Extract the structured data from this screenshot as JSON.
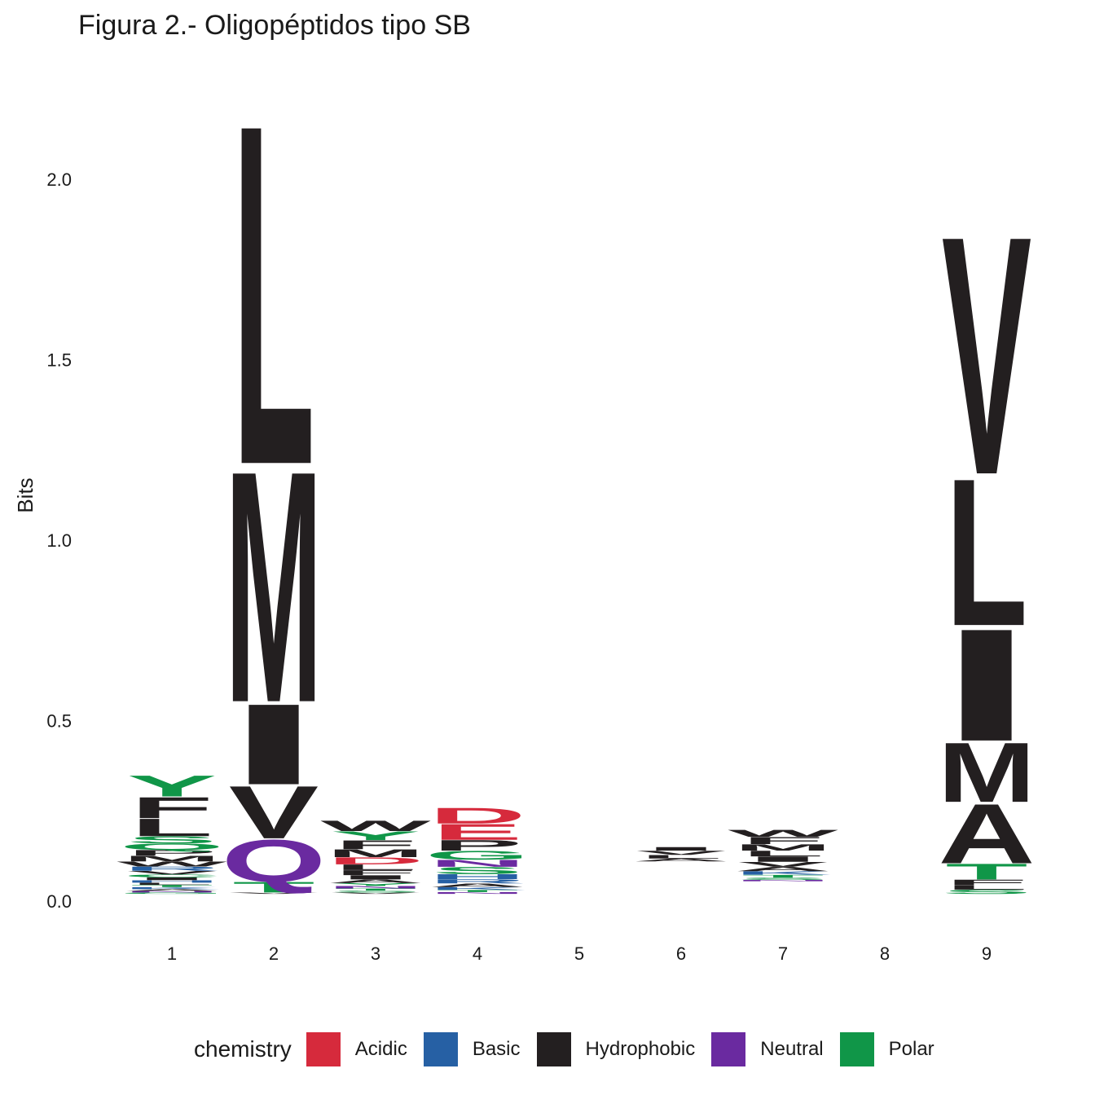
{
  "chart_data": {
    "type": "sequence-logo",
    "title": "Figura 2.- Oligopéptidos tipo SB",
    "ylabel": "Bits",
    "xlabel": "",
    "ylim": [
      0,
      2.25
    ],
    "yticks": [
      "0.0",
      "0.5",
      "1.0",
      "1.5",
      "2.0"
    ],
    "ytick_values": [
      0,
      0.5,
      1.0,
      1.5,
      2.0
    ],
    "positions": [
      "1",
      "2",
      "3",
      "4",
      "5",
      "6",
      "7",
      "8",
      "9"
    ],
    "legend": {
      "title": "chemistry",
      "placement": "bottom",
      "entries": [
        {
          "name": "Acidic",
          "color": "#d62a3c"
        },
        {
          "name": "Basic",
          "color": "#2660a4"
        },
        {
          "name": "Hydrophobic",
          "color": "#231f20"
        },
        {
          "name": "Neutral",
          "color": "#6a2aa0"
        },
        {
          "name": "Polar",
          "color": "#109648"
        }
      ]
    },
    "stacks": [
      {
        "position": "1",
        "letters": [
          {
            "aa": "G",
            "cls": "Polar",
            "bits": 0.004
          },
          {
            "aa": "N",
            "cls": "Neutral",
            "bits": 0.004
          },
          {
            "aa": "A",
            "cls": "Hydrophobic",
            "bits": 0.005
          },
          {
            "aa": "K",
            "cls": "Basic",
            "bits": 0.006
          },
          {
            "aa": "T",
            "cls": "Polar",
            "bits": 0.006
          },
          {
            "aa": "L",
            "cls": "Hydrophobic",
            "bits": 0.006
          },
          {
            "aa": "H",
            "cls": "Basic",
            "bits": 0.007
          },
          {
            "aa": "I",
            "cls": "Hydrophobic",
            "bits": 0.008
          },
          {
            "aa": "C",
            "cls": "Polar",
            "bits": 0.008
          },
          {
            "aa": "V",
            "cls": "Hydrophobic",
            "bits": 0.01
          },
          {
            "aa": "R",
            "cls": "Basic",
            "bits": 0.012
          },
          {
            "aa": "W",
            "cls": "Hydrophobic",
            "bits": 0.014
          },
          {
            "aa": "M",
            "cls": "Hydrophobic",
            "bits": 0.016
          },
          {
            "aa": "P",
            "cls": "Hydrophobic",
            "bits": 0.016
          },
          {
            "aa": "Q",
            "cls": "Polar",
            "bits": 0.018
          },
          {
            "aa": "S",
            "cls": "Polar",
            "bits": 0.02
          },
          {
            "aa": "L",
            "cls": "Hydrophobic",
            "bits": 0.05
          },
          {
            "aa": "F",
            "cls": "Hydrophobic",
            "bits": 0.06
          },
          {
            "aa": "Y",
            "cls": "Polar",
            "bits": 0.06
          }
        ]
      },
      {
        "position": "2",
        "letters": [
          {
            "aa": "V",
            "cls": "Hydrophobic",
            "bits": 0.004
          },
          {
            "aa": "T",
            "cls": "Polar",
            "bits": 0.03
          },
          {
            "aa": "Q",
            "cls": "Neutral",
            "bits": 0.12
          },
          {
            "aa": "V",
            "cls": "Hydrophobic",
            "bits": 0.15
          },
          {
            "aa": "I",
            "cls": "Hydrophobic",
            "bits": 0.23
          },
          {
            "aa": "M",
            "cls": "Hydrophobic",
            "bits": 0.66
          },
          {
            "aa": "L",
            "cls": "Hydrophobic",
            "bits": 0.97
          }
        ]
      },
      {
        "position": "3",
        "letters": [
          {
            "aa": "V",
            "cls": "Hydrophobic",
            "bits": 0.004
          },
          {
            "aa": "S",
            "cls": "Polar",
            "bits": 0.005
          },
          {
            "aa": "T",
            "cls": "Polar",
            "bits": 0.006
          },
          {
            "aa": "N",
            "cls": "Neutral",
            "bits": 0.007
          },
          {
            "aa": "Y",
            "cls": "Polar",
            "bits": 0.008
          },
          {
            "aa": "A",
            "cls": "Hydrophobic",
            "bits": 0.01
          },
          {
            "aa": "I",
            "cls": "Hydrophobic",
            "bits": 0.012
          },
          {
            "aa": "F",
            "cls": "Hydrophobic",
            "bits": 0.014
          },
          {
            "aa": "L",
            "cls": "Hydrophobic",
            "bits": 0.016
          },
          {
            "aa": "D",
            "cls": "Acidic",
            "bits": 0.02
          },
          {
            "aa": "M",
            "cls": "Hydrophobic",
            "bits": 0.022
          },
          {
            "aa": "F",
            "cls": "Hydrophobic",
            "bits": 0.025
          },
          {
            "aa": "Y",
            "cls": "Polar",
            "bits": 0.025
          },
          {
            "aa": "W",
            "cls": "Hydrophobic",
            "bits": 0.03
          }
        ]
      },
      {
        "position": "4",
        "letters": [
          {
            "aa": "N",
            "cls": "Neutral",
            "bits": 0.005
          },
          {
            "aa": "T",
            "cls": "Polar",
            "bits": 0.006
          },
          {
            "aa": "K",
            "cls": "Basic",
            "bits": 0.008
          },
          {
            "aa": "A",
            "cls": "Hydrophobic",
            "bits": 0.01
          },
          {
            "aa": "R",
            "cls": "Basic",
            "bits": 0.012
          },
          {
            "aa": "H",
            "cls": "Basic",
            "bits": 0.014
          },
          {
            "aa": "S",
            "cls": "Polar",
            "bits": 0.02
          },
          {
            "aa": "N",
            "cls": "Neutral",
            "bits": 0.02
          },
          {
            "aa": "G",
            "cls": "Polar",
            "bits": 0.025
          },
          {
            "aa": "P",
            "cls": "Hydrophobic",
            "bits": 0.03
          },
          {
            "aa": "E",
            "cls": "Acidic",
            "bits": 0.045
          },
          {
            "aa": "D",
            "cls": "Acidic",
            "bits": 0.045
          }
        ]
      },
      {
        "position": "5",
        "letters": []
      },
      {
        "position": "6",
        "letters": [
          {
            "aa": "A",
            "cls": "Hydrophobic",
            "bits": 0.008
          },
          {
            "aa": "L",
            "cls": "Hydrophobic",
            "bits": 0.01
          },
          {
            "aa": "V",
            "cls": "Hydrophobic",
            "bits": 0.012
          },
          {
            "aa": "I",
            "cls": "Hydrophobic",
            "bits": 0.01
          }
        ]
      },
      {
        "position": "7",
        "letters": [
          {
            "aa": "N",
            "cls": "Neutral",
            "bits": 0.004
          },
          {
            "aa": "S",
            "cls": "Polar",
            "bits": 0.006
          },
          {
            "aa": "T",
            "cls": "Polar",
            "bits": 0.008
          },
          {
            "aa": "K",
            "cls": "Basic",
            "bits": 0.01
          },
          {
            "aa": "A",
            "cls": "Hydrophobic",
            "bits": 0.012
          },
          {
            "aa": "V",
            "cls": "Hydrophobic",
            "bits": 0.014
          },
          {
            "aa": "I",
            "cls": "Hydrophobic",
            "bits": 0.015
          },
          {
            "aa": "L",
            "cls": "Hydrophobic",
            "bits": 0.016
          },
          {
            "aa": "M",
            "cls": "Hydrophobic",
            "bits": 0.018
          },
          {
            "aa": "F",
            "cls": "Hydrophobic",
            "bits": 0.02
          },
          {
            "aa": "W",
            "cls": "Hydrophobic",
            "bits": 0.02
          }
        ]
      },
      {
        "position": "8",
        "letters": []
      },
      {
        "position": "9",
        "letters": [
          {
            "aa": "S",
            "cls": "Polar",
            "bits": 0.012
          },
          {
            "aa": "L",
            "cls": "Hydrophobic",
            "bits": 0.012
          },
          {
            "aa": "F",
            "cls": "Hydrophobic",
            "bits": 0.016
          },
          {
            "aa": "T",
            "cls": "Polar",
            "bits": 0.045
          },
          {
            "aa": "A",
            "cls": "Hydrophobic",
            "bits": 0.17
          },
          {
            "aa": "M",
            "cls": "Hydrophobic",
            "bits": 0.17
          },
          {
            "aa": "I",
            "cls": "Hydrophobic",
            "bits": 0.32
          },
          {
            "aa": "L",
            "cls": "Hydrophobic",
            "bits": 0.42
          },
          {
            "aa": "V",
            "cls": "Hydrophobic",
            "bits": 0.68
          }
        ]
      }
    ]
  }
}
